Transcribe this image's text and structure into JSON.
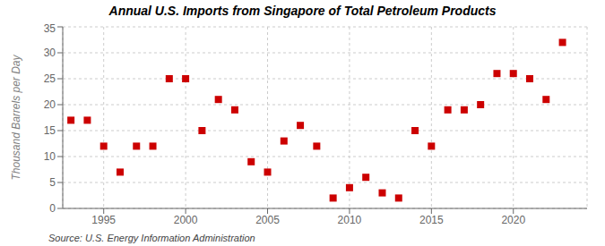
{
  "chart_data": {
    "type": "scatter",
    "title": "Annual U.S. Imports from Singapore of Total Petroleum Products",
    "y_label": "Thousand Barrels per Day",
    "annotations": [
      "Source: U.S. Energy Information Administration"
    ],
    "x": [
      1993,
      1994,
      1995,
      1996,
      1997,
      1998,
      1999,
      2000,
      2001,
      2002,
      2003,
      2004,
      2005,
      2006,
      2007,
      2008,
      2009,
      2010,
      2011,
      2012,
      2013,
      2014,
      2015,
      2016,
      2017,
      2018,
      2019,
      2020,
      2021,
      2022,
      2023
    ],
    "values": [
      17,
      17,
      12,
      7,
      12,
      12,
      25,
      25,
      15,
      21,
      19,
      9,
      7,
      13,
      16,
      12,
      2,
      4,
      6,
      3,
      2,
      15,
      12,
      19,
      19,
      20,
      26,
      26,
      25,
      21,
      32
    ],
    "color": "#cc0000",
    "marker": "square",
    "xlim": [
      1992.5,
      2024.5
    ],
    "xticks": [
      1995,
      2000,
      2005,
      2010,
      2015,
      2020
    ],
    "ylim": [
      0,
      35
    ],
    "yticks": [
      0,
      5,
      10,
      15,
      20,
      25,
      30,
      35
    ],
    "grid": true
  }
}
